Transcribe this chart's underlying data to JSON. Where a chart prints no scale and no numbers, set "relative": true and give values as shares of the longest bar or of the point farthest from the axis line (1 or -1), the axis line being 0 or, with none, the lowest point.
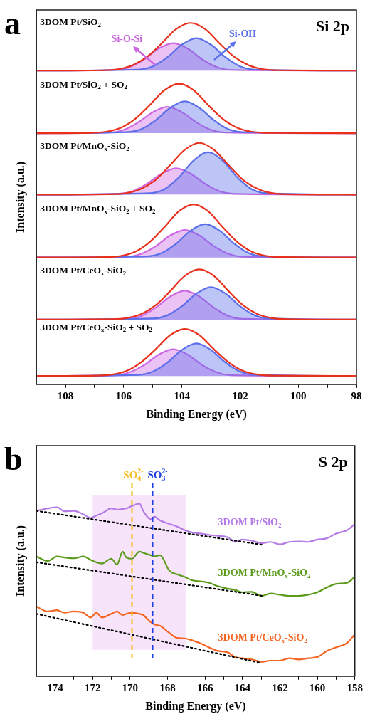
{
  "chart_data": [
    {
      "type": "line",
      "relative": true,
      "marker": "none",
      "xlabel": "Binding Energy (eV)",
      "ylabel": "Intensity (a.u.)",
      "xlim": [
        109,
        98
      ],
      "xticks": [
        108,
        {
          "value": 107,
          "label": null
        },
        106,
        {
          "value": 105,
          "label": null
        },
        104,
        {
          "value": 103,
          "label": null
        },
        102,
        {
          "value": 101,
          "label": null
        },
        100,
        {
          "value": 99,
          "label": null
        },
        98
      ],
      "annotations": [
        "a",
        "Si 2p",
        "3DOM Pt/SiO$_{2}$",
        "3DOM Pt/SiO$_{2}$ + SO$_{2}$",
        "3DOM Pt/MnO$_{x}$-SiO$_{2}$",
        "3DOM Pt/MnO$_{x}$-SiO$_{2}$ + SO$_{2}$",
        "3DOM Pt/CeO$_{x}$-SiO$_{2}$",
        "3DOM Pt/CeO$_{x}$-SiO$_{2}$ + SO$_{2}$",
        "Si-O-Si",
        "Si-OH"
      ],
      "series": [
        {
          "type": "area",
          "color": "#cc66e0",
          "x": [
            109,
            106.3,
            105.8,
            105.3,
            104.8,
            104.3,
            103.8,
            103.3,
            102.8,
            102.3,
            98
          ],
          "values": [
            0.868,
            0.87,
            0.878,
            0.899,
            0.929,
            0.944,
            0.929,
            0.899,
            0.878,
            0.87,
            0.868
          ]
        },
        {
          "type": "area",
          "color": "#5b6fe8",
          "x": [
            109,
            105.5,
            105,
            104.5,
            104,
            103.5,
            103,
            102.5,
            102,
            101.5,
            98
          ],
          "values": [
            0.868,
            0.871,
            0.88,
            0.905,
            0.94,
            0.958,
            0.94,
            0.905,
            0.88,
            0.871,
            0.868
          ]
        },
        {
          "color": "#e8301c",
          "x": [
            109,
            106.7,
            106.2,
            105.7,
            105.2,
            104.7,
            104.2,
            103.7,
            103.2,
            102.7,
            102.2,
            101.7,
            101.2,
            100.7,
            98
          ],
          "values": [
            0.868,
            0.869,
            0.872,
            0.883,
            0.906,
            0.943,
            0.983,
            1.0,
            0.983,
            0.943,
            0.906,
            0.883,
            0.872,
            0.869,
            0.868
          ]
        },
        {
          "type": "area",
          "color": "#cc66e1",
          "x": [
            109,
            106.5,
            106,
            105.5,
            105,
            104.5,
            104,
            103.5,
            103,
            102.5,
            98
          ],
          "values": [
            0.695,
            0.697,
            0.704,
            0.725,
            0.753,
            0.768,
            0.753,
            0.725,
            0.704,
            0.697,
            0.695
          ]
        },
        {
          "type": "area",
          "color": "#5b6fe9",
          "x": [
            109,
            105.9,
            105.4,
            104.9,
            104.4,
            103.9,
            103.4,
            102.9,
            102.4,
            101.9,
            98
          ],
          "values": [
            0.695,
            0.698,
            0.706,
            0.731,
            0.765,
            0.783,
            0.765,
            0.731,
            0.706,
            0.698,
            0.695
          ]
        },
        {
          "color": "#e8301c",
          "x": [
            109,
            107.1,
            106.6,
            106.1,
            105.6,
            105.1,
            104.6,
            104.1,
            103.6,
            103.1,
            102.6,
            102.1,
            101.6,
            101.1,
            98
          ],
          "values": [
            0.695,
            0.696,
            0.699,
            0.71,
            0.735,
            0.773,
            0.814,
            0.832,
            0.814,
            0.773,
            0.735,
            0.71,
            0.699,
            0.696,
            0.695
          ]
        },
        {
          "type": "area",
          "color": "#cc66e2",
          "x": [
            109,
            106.2,
            105.7,
            105.2,
            104.7,
            104.2,
            103.7,
            103.2,
            102.7,
            102.2,
            98
          ],
          "values": [
            0.525,
            0.527,
            0.534,
            0.555,
            0.583,
            0.598,
            0.583,
            0.555,
            0.534,
            0.527,
            0.525
          ]
        },
        {
          "type": "area",
          "color": "#5b6fea",
          "x": [
            109,
            105.1,
            104.6,
            104.1,
            103.6,
            103.1,
            102.6,
            102.1,
            101.6,
            101.1,
            98
          ],
          "values": [
            0.525,
            0.529,
            0.54,
            0.573,
            0.619,
            0.642,
            0.619,
            0.573,
            0.54,
            0.529,
            0.525
          ]
        },
        {
          "color": "#e8301c",
          "x": [
            109,
            106.4,
            105.9,
            105.4,
            104.9,
            104.4,
            103.9,
            103.4,
            102.9,
            102.4,
            101.9,
            101.4,
            100.9,
            100.4,
            98
          ],
          "values": [
            0.525,
            0.526,
            0.529,
            0.541,
            0.566,
            0.607,
            0.649,
            0.668,
            0.649,
            0.607,
            0.566,
            0.541,
            0.529,
            0.526,
            0.525
          ]
        },
        {
          "type": "area",
          "color": "#cc66e3",
          "x": [
            109,
            105.9,
            105.4,
            104.9,
            104.4,
            103.9,
            103.4,
            102.9,
            102.4,
            101.9,
            98
          ],
          "values": [
            0.351,
            0.353,
            0.361,
            0.382,
            0.412,
            0.427,
            0.412,
            0.382,
            0.361,
            0.353,
            0.351
          ]
        },
        {
          "type": "area",
          "color": "#5b6feb",
          "x": [
            109,
            105.2,
            104.7,
            104.2,
            103.7,
            103.2,
            102.7,
            102.2,
            101.7,
            101.2,
            98
          ],
          "values": [
            0.351,
            0.354,
            0.363,
            0.389,
            0.425,
            0.443,
            0.425,
            0.389,
            0.363,
            0.354,
            0.351
          ]
        },
        {
          "color": "#e8301c",
          "x": [
            109,
            106.6,
            106.1,
            105.6,
            105.1,
            104.6,
            104.1,
            103.6,
            103.1,
            102.6,
            102.1,
            101.6,
            101.1,
            100.6,
            98
          ],
          "values": [
            0.351,
            0.352,
            0.355,
            0.367,
            0.394,
            0.435,
            0.479,
            0.498,
            0.479,
            0.435,
            0.394,
            0.367,
            0.355,
            0.352,
            0.351
          ]
        },
        {
          "type": "area",
          "color": "#cc66e4",
          "x": [
            109,
            105.9,
            105.4,
            104.9,
            104.4,
            103.9,
            103.4,
            102.9,
            102.4,
            101.9,
            98
          ],
          "values": [
            0.179,
            0.181,
            0.189,
            0.212,
            0.243,
            0.259,
            0.243,
            0.212,
            0.189,
            0.181,
            0.179
          ]
        },
        {
          "type": "area",
          "color": "#5b6fec",
          "x": [
            109,
            105,
            104.5,
            104,
            103.5,
            103,
            102.5,
            102,
            101.5,
            101,
            98
          ],
          "values": [
            0.179,
            0.182,
            0.191,
            0.216,
            0.251,
            0.269,
            0.251,
            0.216,
            0.191,
            0.182,
            0.179
          ]
        },
        {
          "color": "#e8301c",
          "x": [
            109,
            106.4,
            105.9,
            105.4,
            104.9,
            104.4,
            103.9,
            103.4,
            102.9,
            102.4,
            101.9,
            101.4,
            100.9,
            100.4,
            98
          ],
          "values": [
            0.179,
            0.18,
            0.183,
            0.194,
            0.219,
            0.258,
            0.3,
            0.318,
            0.3,
            0.258,
            0.219,
            0.194,
            0.183,
            0.18,
            0.179
          ]
        },
        {
          "type": "area",
          "color": "#cc66e5",
          "x": [
            109,
            106.3,
            105.8,
            105.3,
            104.8,
            104.3,
            103.8,
            103.3,
            102.8,
            102.3,
            98
          ],
          "values": [
            0.023,
            0.025,
            0.033,
            0.053,
            0.082,
            0.097,
            0.082,
            0.053,
            0.033,
            0.025,
            0.023
          ]
        },
        {
          "type": "area",
          "color": "#5b6fed",
          "x": [
            109,
            105.5,
            105,
            104.5,
            104,
            103.5,
            103,
            102.5,
            102,
            101.5,
            98
          ],
          "values": [
            0.023,
            0.026,
            0.035,
            0.06,
            0.095,
            0.113,
            0.095,
            0.06,
            0.035,
            0.026,
            0.023
          ]
        },
        {
          "color": "#e8301c",
          "x": [
            109,
            106.9,
            106.4,
            105.9,
            105.4,
            104.9,
            104.4,
            103.9,
            103.4,
            102.9,
            102.4,
            101.9,
            101.4,
            100.9,
            98
          ],
          "values": [
            0.023,
            0.024,
            0.027,
            0.037,
            0.061,
            0.097,
            0.136,
            0.153,
            0.136,
            0.097,
            0.061,
            0.037,
            0.027,
            0.024,
            0.023
          ]
        }
      ]
    },
    {
      "type": "line",
      "relative": true,
      "marker": "none",
      "xlabel": "Binding Energy (eV)",
      "ylabel": "Intensity (a.u.)",
      "xlim": [
        175,
        158
      ],
      "xticks": [
        174,
        {
          "value": 173,
          "label": null
        },
        172,
        {
          "value": 171,
          "label": null
        },
        170,
        {
          "value": 169,
          "label": null
        },
        168,
        {
          "value": 167,
          "label": null
        },
        166,
        {
          "value": 165,
          "label": null
        },
        164,
        {
          "value": 163,
          "label": null
        },
        162,
        {
          "value": 161,
          "label": null
        },
        160,
        {
          "value": 159,
          "label": null
        },
        158
      ],
      "annotations": [
        "b",
        "S 2p"
      ],
      "bands": [
        {
          "axis": "x",
          "from": 172,
          "to": 167,
          "color": "#f7e4fb"
        }
      ],
      "ref_lines": [
        {
          "axis": "x",
          "value": 169.9,
          "label": "SO$_{4}$$^{2-}$",
          "color": "#f5c02a",
          "line_style": "dashed"
        },
        {
          "axis": "x",
          "value": 168.8,
          "label": "SO$_{3}$$^{2-}$",
          "color": "#2040e0",
          "line_style": "dashed"
        }
      ],
      "x": [
        175,
        174.4,
        173.9,
        173.5,
        173,
        172.5,
        172.1,
        171.8,
        171.5,
        171,
        170.7,
        170.4,
        170.2,
        169.9,
        169.5,
        169.3,
        168.9,
        168.7,
        168.4,
        167.9,
        167.5,
        167.1,
        166.7,
        166.2,
        165.8,
        165.3,
        164.8,
        164.4,
        164,
        163.5,
        163,
        162.5,
        162,
        161.5,
        161,
        160.5,
        160,
        159.5,
        159,
        158.4,
        158
      ],
      "series": [
        {
          "name": "3DOM Pt/SiO$_{2}$",
          "color": "#b47ae6",
          "values": [
            0.958,
            0.972,
            0.979,
            0.956,
            0.958,
            0.938,
            0.917,
            0.931,
            0.944,
            0.972,
            0.965,
            0.969,
            0.972,
            0.986,
            1.0,
            0.958,
            0.91,
            0.924,
            0.903,
            0.882,
            0.868,
            0.847,
            0.833,
            0.826,
            0.819,
            0.813,
            0.806,
            0.778,
            0.792,
            0.785,
            0.771,
            0.778,
            0.764,
            0.778,
            0.781,
            0.778,
            0.792,
            0.799,
            0.826,
            0.847,
            0.882
          ]
        },
        {
          "name": "3DOM Pt/MnO$_{x}$-SiO$_{2}$",
          "color": "#5b9a1a",
          "values": [
            0.694,
            0.667,
            0.694,
            0.688,
            0.683,
            0.694,
            0.674,
            0.66,
            0.653,
            0.681,
            0.646,
            0.722,
            0.688,
            0.681,
            0.722,
            0.715,
            0.701,
            0.694,
            0.701,
            0.611,
            0.59,
            0.576,
            0.556,
            0.549,
            0.542,
            0.521,
            0.507,
            0.5,
            0.486,
            0.489,
            0.465,
            0.479,
            0.472,
            0.465,
            0.465,
            0.472,
            0.486,
            0.514,
            0.535,
            0.542,
            0.576
          ]
        },
        {
          "name": "3DOM Pt/CeO$_{x}$-SiO$_{2}$",
          "color": "#f26522",
          "values": [
            0.403,
            0.375,
            0.382,
            0.368,
            0.375,
            0.368,
            0.34,
            0.368,
            0.34,
            0.361,
            0.375,
            0.354,
            0.361,
            0.368,
            0.361,
            0.354,
            0.313,
            0.299,
            0.292,
            0.25,
            0.222,
            0.219,
            0.208,
            0.188,
            0.167,
            0.146,
            0.139,
            0.111,
            0.104,
            0.097,
            0.083,
            0.09,
            0.09,
            0.104,
            0.097,
            0.104,
            0.111,
            0.146,
            0.167,
            0.194,
            0.243
          ]
        },
        {
          "color": "#000000",
          "line_style": "dotted",
          "x": [
            175,
            162.9
          ],
          "values": [
            0.958,
            0.761
          ]
        },
        {
          "color": "#000000",
          "line_style": "dotted",
          "x": [
            175,
            162.9
          ],
          "values": [
            0.66,
            0.465
          ]
        },
        {
          "color": "#000000",
          "line_style": "dotted",
          "x": [
            175,
            163
          ],
          "values": [
            0.361,
            0.076
          ]
        }
      ]
    }
  ]
}
